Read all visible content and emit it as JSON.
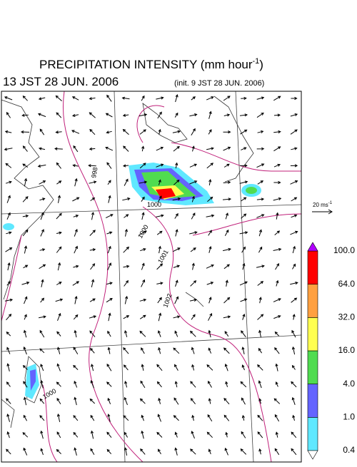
{
  "header": {
    "title": {
      "main": "PRECIPITATION INTENSITY (mm hour",
      "exponent": "-1",
      "close": ")"
    },
    "time": "13 JST 28 JUN. 2006",
    "init": "(init. 9 JST 28 JUN. 2006)"
  },
  "vector_scale": {
    "unit": "20 ms",
    "exponent": "-1"
  },
  "contour_labels": [
    "998",
    "1000",
    "1000",
    "1001",
    "1002",
    "1000"
  ],
  "legend": {
    "levels": [
      "0.4",
      "1.0",
      "4.0",
      "16.0",
      "32.0",
      "64.0",
      "100.0"
    ],
    "colors": [
      "#5fe8ff",
      "#6464ff",
      "#50dc50",
      "#ffff50",
      "#ffa040",
      "#ff0000"
    ],
    "over_color": "#b000ff",
    "under_color": "#ffffff"
  }
}
